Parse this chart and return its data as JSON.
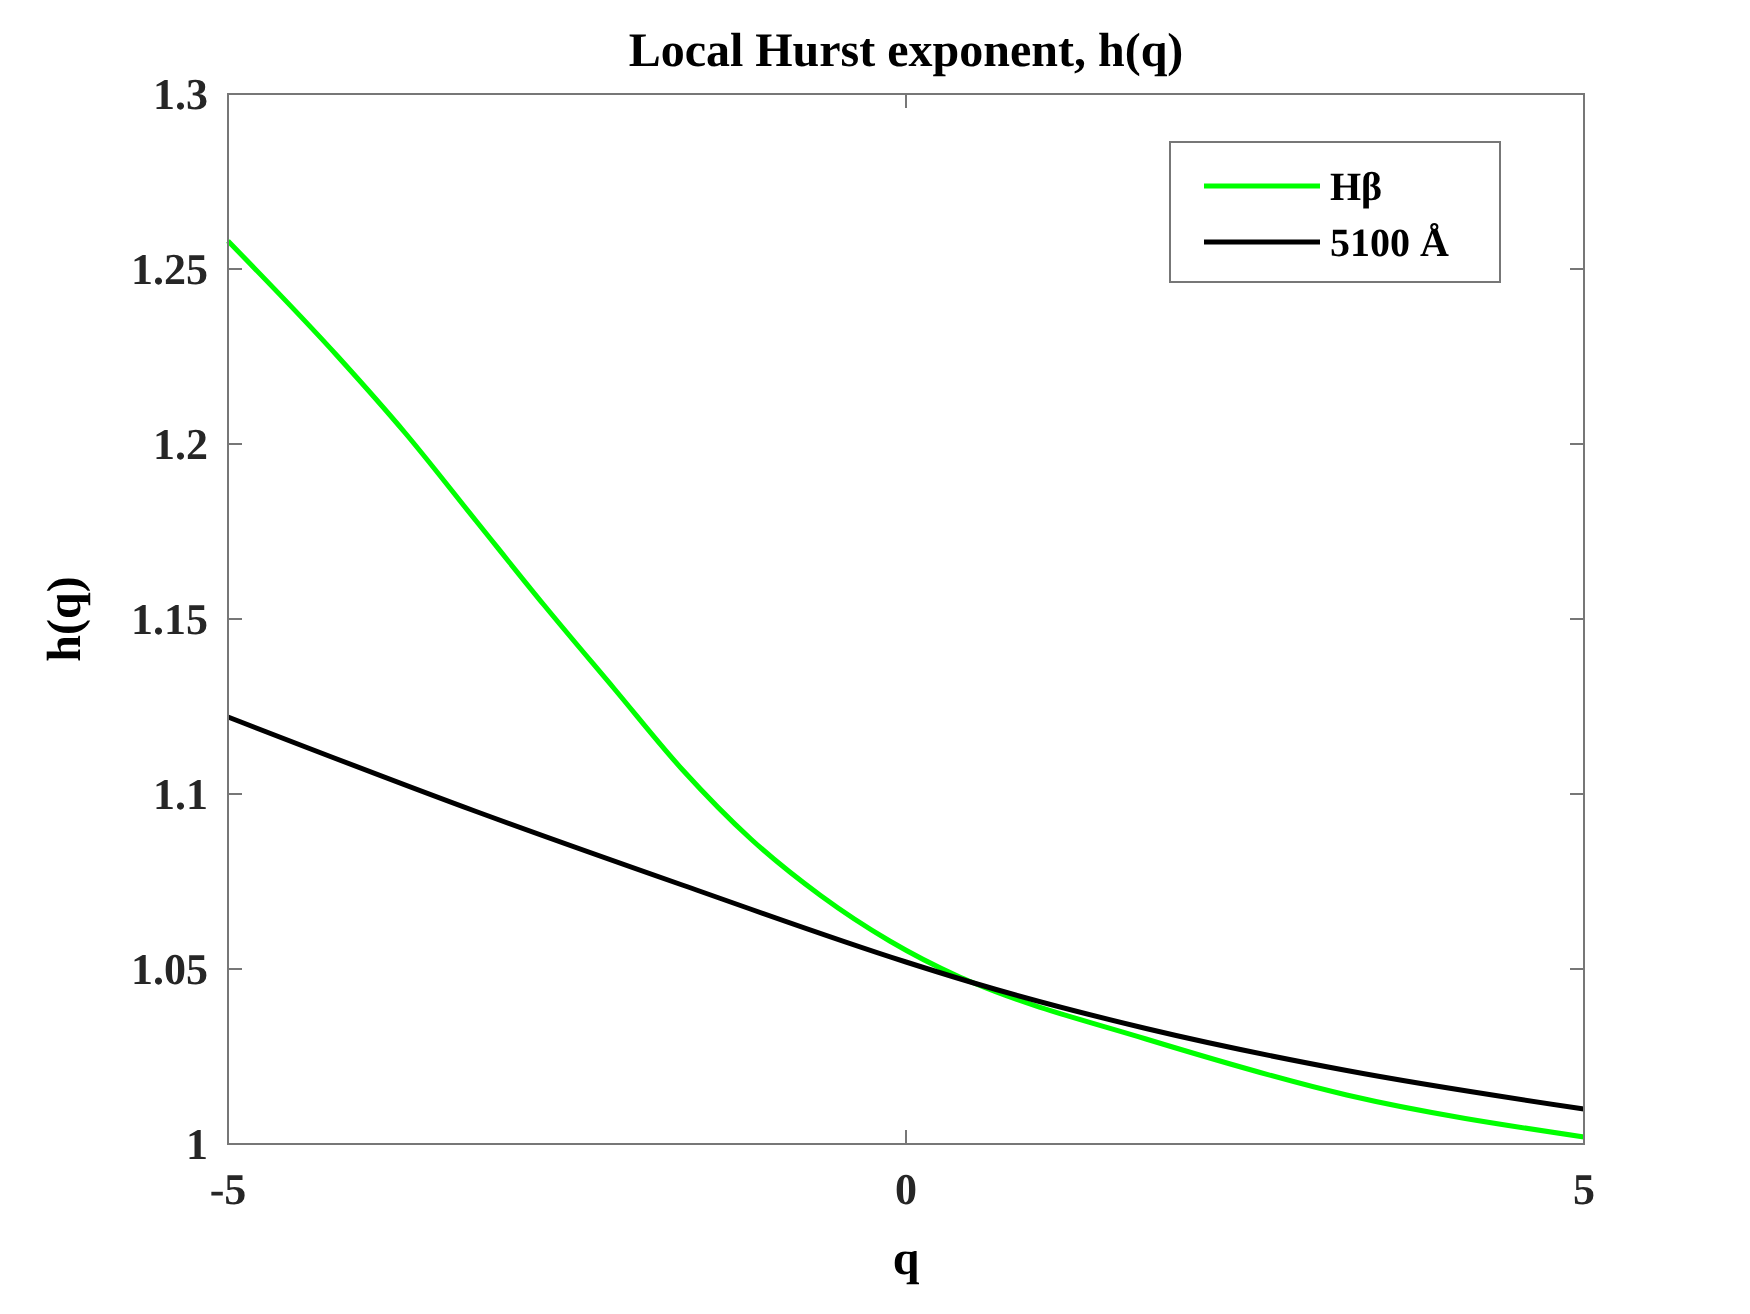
{
  "chart_data": {
    "type": "line",
    "title": "Local Hurst exponent, h(q)",
    "xlabel": "q",
    "ylabel": "h(q)",
    "xlim": [
      -5,
      5
    ],
    "xticks": [
      -5,
      0,
      5
    ],
    "ylim": [
      1,
      1.3
    ],
    "yticks": [
      1,
      1.05,
      1.1,
      1.15,
      1.2,
      1.25,
      1.3
    ],
    "grid": false,
    "legend": "top right",
    "line_style": "solid",
    "marker": "none",
    "series": [
      {
        "name": "Hβ",
        "color": "#00ff00",
        "x": [
          -5,
          -4.19,
          -3.69,
          -3.17,
          -2.67,
          -2.15,
          -1.65,
          -1.14,
          -0.63,
          -0.12,
          0.38,
          0.5,
          1.77,
          3.25,
          5
        ],
        "values": [
          1.258,
          1.225,
          1.203,
          1.178,
          1.154,
          1.13,
          1.107,
          1.087,
          1.071,
          1.058,
          1.048,
          1.046,
          1.03,
          1.014,
          1.002
        ]
      },
      {
        "name": "5100 Å",
        "color": "#000000",
        "x": [
          -5,
          -3.17,
          -1.65,
          0,
          0.5,
          1.77,
          3.25,
          5
        ],
        "values": [
          1.122,
          1.095,
          1.074,
          1.052,
          1.046,
          1.033,
          1.021,
          1.01
        ]
      }
    ]
  }
}
